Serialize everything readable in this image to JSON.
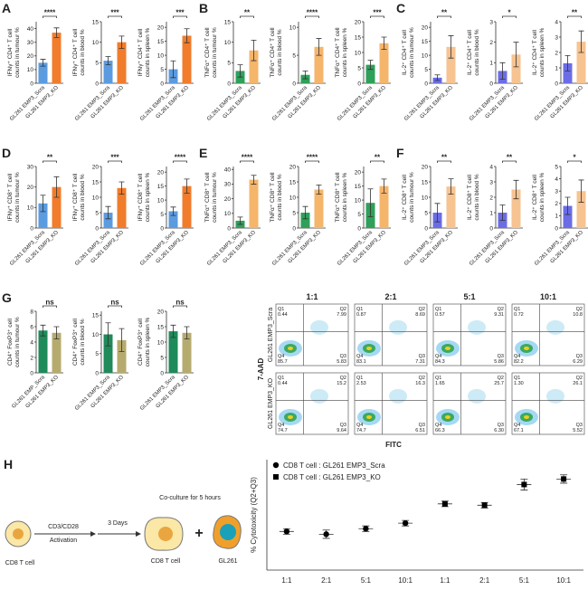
{
  "chart_data": [
    {
      "type": "bar",
      "panel": "A",
      "ylabel": [
        "IFNγ⁺ CD4⁺ T cell",
        "counts in tumour %"
      ],
      "categories": [
        "GL261 EMP3_Scra",
        "GL261 EMP3_KO"
      ],
      "values": [
        15,
        37
      ],
      "errors": [
        2.5,
        3.5
      ],
      "colors": [
        "#5b9be0",
        "#f07c2c"
      ],
      "ylim": [
        0,
        45
      ],
      "yticks": [
        0,
        10,
        20,
        30,
        40
      ],
      "significance": "****"
    },
    {
      "type": "bar",
      "ylabel": [
        "IFNγ⁺ CD4⁺ T cell",
        "counts in blood %"
      ],
      "categories": [
        "GL261 EMP3_Scra",
        "GL261 EMP3_KO"
      ],
      "values": [
        5.5,
        10
      ],
      "errors": [
        1,
        1.5
      ],
      "colors": [
        "#5b9be0",
        "#f07c2c"
      ],
      "ylim": [
        0,
        15
      ],
      "yticks": [
        0,
        5,
        10,
        15
      ],
      "significance": "***"
    },
    {
      "type": "bar",
      "ylabel": [
        "IFNγ⁺ CD4⁺ T cell",
        "counts in spleen %"
      ],
      "categories": [
        "GL261 EMP3_Scra",
        "GL261 EMP3_KO"
      ],
      "values": [
        5,
        17
      ],
      "errors": [
        3,
        2.5
      ],
      "colors": [
        "#5b9be0",
        "#f07c2c"
      ],
      "ylim": [
        0,
        22
      ],
      "yticks": [
        0,
        5,
        10,
        15,
        20
      ],
      "significance": "***"
    },
    {
      "type": "bar",
      "panel": "B",
      "ylabel": [
        "TNFα⁺ CD4⁺ T cell",
        "counts in tumour %"
      ],
      "categories": [
        "GL261 EMP3_Scra",
        "GL261 EMP3_KO"
      ],
      "values": [
        3,
        8
      ],
      "errors": [
        1.5,
        2.5
      ],
      "colors": [
        "#2ea05a",
        "#f5b56b"
      ],
      "ylim": [
        0,
        15
      ],
      "yticks": [
        0,
        5,
        10,
        15
      ],
      "significance": "**"
    },
    {
      "type": "bar",
      "ylabel": [
        "TNFα⁺ CD4⁺ T cell",
        "counts in blood %"
      ],
      "categories": [
        "GL261 EMP3_Scra",
        "GL261 EMP3_KO"
      ],
      "values": [
        1.5,
        6.5
      ],
      "errors": [
        0.7,
        1.5
      ],
      "colors": [
        "#2ea05a",
        "#f5b56b"
      ],
      "ylim": [
        0,
        11
      ],
      "yticks": [
        0,
        5,
        10
      ],
      "significance": "****"
    },
    {
      "type": "bar",
      "ylabel": [
        "TNFα⁺ CD4⁺ T cell",
        "counts in spleen %"
      ],
      "categories": [
        "GL261 EMP3_Scra",
        "GL261 EMP3_KO"
      ],
      "values": [
        6,
        13
      ],
      "errors": [
        1.5,
        2
      ],
      "colors": [
        "#2ea05a",
        "#f5b56b"
      ],
      "ylim": [
        0,
        20
      ],
      "yticks": [
        0,
        5,
        10,
        15,
        20
      ],
      "significance": "***"
    },
    {
      "type": "bar",
      "panel": "C",
      "ylabel": [
        "IL-2⁺ CD4⁺ T cell",
        "counts in tumour %"
      ],
      "categories": [
        "GL261 EMP3_Scra",
        "GL261 EMP3_KO"
      ],
      "values": [
        2,
        13
      ],
      "errors": [
        1,
        4
      ],
      "colors": [
        "#6b6de6",
        "#f6c391"
      ],
      "ylim": [
        0,
        22
      ],
      "yticks": [
        0,
        5,
        10,
        15,
        20
      ],
      "significance": "**"
    },
    {
      "type": "bar",
      "ylabel": [
        "IL-2⁺ CD4⁺ T cell",
        "counts in blood %"
      ],
      "categories": [
        "GL261 EMP3_Scra",
        "GL261 EMP3_KO"
      ],
      "values": [
        0.6,
        1.4
      ],
      "errors": [
        0.4,
        0.6
      ],
      "colors": [
        "#6b6de6",
        "#f6c391"
      ],
      "ylim": [
        0,
        3
      ],
      "yticks": [
        0,
        1,
        2,
        3
      ],
      "significance": "*"
    },
    {
      "type": "bar",
      "ylabel": [
        "IL-2⁺ CD4⁺ T cell",
        "counts in spleen %"
      ],
      "categories": [
        "GL261 EMP3_Scra",
        "GL261 EMP3_KO"
      ],
      "values": [
        1.3,
        2.7
      ],
      "errors": [
        0.5,
        0.7
      ],
      "colors": [
        "#6b6de6",
        "#f6c391"
      ],
      "ylim": [
        0,
        4
      ],
      "yticks": [
        0,
        1,
        2,
        3,
        4
      ],
      "significance": "**"
    },
    {
      "type": "bar",
      "panel": "D",
      "ylabel": [
        "IFNγ⁺ CD8⁺ T cell",
        "counts in tumour %"
      ],
      "categories": [
        "GL261 EMP3_Scra",
        "GL261 EMP3_KO"
      ],
      "values": [
        12,
        20
      ],
      "errors": [
        4,
        5
      ],
      "colors": [
        "#5b9be0",
        "#f07c2c"
      ],
      "ylim": [
        0,
        30
      ],
      "yticks": [
        0,
        10,
        20,
        30
      ],
      "significance": "**"
    },
    {
      "type": "bar",
      "ylabel": [
        "IFNγ⁺ CD8⁺ T cell",
        "counts in blood %"
      ],
      "categories": [
        "GL261 EMP3_Scra",
        "GL261 EMP3_KO"
      ],
      "values": [
        5,
        13
      ],
      "errors": [
        2,
        2
      ],
      "colors": [
        "#5b9be0",
        "#f07c2c"
      ],
      "ylim": [
        0,
        20
      ],
      "yticks": [
        0,
        5,
        10,
        15,
        20
      ],
      "significance": "***"
    },
    {
      "type": "bar",
      "ylabel": [
        "IFNγ⁺ CD8⁺ T cell",
        "counts in spleen %"
      ],
      "categories": [
        "GL261 EMP3_Scra",
        "GL261 EMP3_KO"
      ],
      "values": [
        6,
        15
      ],
      "errors": [
        1.5,
        2.5
      ],
      "colors": [
        "#5b9be0",
        "#f07c2c"
      ],
      "ylim": [
        0,
        22
      ],
      "yticks": [
        0,
        5,
        10,
        15,
        20
      ],
      "significance": "****"
    },
    {
      "type": "bar",
      "panel": "E",
      "ylabel": [
        "TNFα⁺ CD8⁺ T cell",
        "counts in tumour %"
      ],
      "categories": [
        "GL261 EMP3_Scra",
        "GL261 EMP3_KO"
      ],
      "values": [
        5,
        33
      ],
      "errors": [
        2.5,
        3
      ],
      "colors": [
        "#2ea05a",
        "#f5b56b"
      ],
      "ylim": [
        0,
        42
      ],
      "yticks": [
        0,
        10,
        20,
        30,
        40
      ],
      "significance": "****"
    },
    {
      "type": "bar",
      "ylabel": [
        "TNFα⁺ CD8⁺ T cell",
        "counts in blood %"
      ],
      "categories": [
        "GL261 EMP3_Scra",
        "GL261 EMP3_KO"
      ],
      "values": [
        5,
        12.5
      ],
      "errors": [
        2,
        1.5
      ],
      "colors": [
        "#2ea05a",
        "#f5b56b"
      ],
      "ylim": [
        0,
        20
      ],
      "yticks": [
        0,
        5,
        10,
        15,
        20
      ],
      "significance": "****"
    },
    {
      "type": "bar",
      "ylabel": [
        "TNFα⁺ CD8⁺ T cell",
        "counts in spleen %"
      ],
      "categories": [
        "GL261 EMP3_Scra",
        "GL261 EMP3_KO"
      ],
      "values": [
        9,
        15
      ],
      "errors": [
        5,
        2.5
      ],
      "colors": [
        "#2ea05a",
        "#f5b56b"
      ],
      "ylim": [
        0,
        22
      ],
      "yticks": [
        0,
        5,
        10,
        15,
        20
      ],
      "significance": "**"
    },
    {
      "type": "bar",
      "panel": "F",
      "ylabel": [
        "IL-2⁺ CD8⁺ T cell",
        "counts in tumour %"
      ],
      "categories": [
        "GL261 EMP3_Scra",
        "GL261 EMP3_KO"
      ],
      "values": [
        5,
        13.5
      ],
      "errors": [
        3,
        2.5
      ],
      "colors": [
        "#6b6de6",
        "#f6c391"
      ],
      "ylim": [
        0,
        20
      ],
      "yticks": [
        0,
        5,
        10,
        15,
        20
      ],
      "significance": "**"
    },
    {
      "type": "bar",
      "ylabel": [
        "IL-2⁺ CD8⁺ T cell",
        "counts in blood %"
      ],
      "categories": [
        "GL261 EMP3_Scra",
        "GL261 EMP3_KO"
      ],
      "values": [
        1,
        2.5
      ],
      "errors": [
        0.5,
        0.6
      ],
      "colors": [
        "#6b6de6",
        "#f6c391"
      ],
      "ylim": [
        0,
        4
      ],
      "yticks": [
        0,
        1,
        2,
        3,
        4
      ],
      "significance": "**"
    },
    {
      "type": "bar",
      "ylabel": [
        "IL-2⁺ CD8⁺ T cell",
        "counts in spleen %"
      ],
      "categories": [
        "GL261 EMP3_Scra",
        "GL261 EMP3_KO"
      ],
      "values": [
        1.8,
        3
      ],
      "errors": [
        0.7,
        0.9
      ],
      "colors": [
        "#6b6de6",
        "#f6c391"
      ],
      "ylim": [
        0,
        5
      ],
      "yticks": [
        0,
        1,
        2,
        3,
        4,
        5
      ],
      "significance": "*"
    },
    {
      "type": "bar",
      "panel": "G",
      "ylabel": [
        "CD4⁺ FoxP3⁺ cell",
        "counts in tumour %"
      ],
      "categories": [
        "GL261 EMP_Scra",
        "GL261 EMP3_KO"
      ],
      "values": [
        5.5,
        5.2
      ],
      "errors": [
        0.7,
        0.8
      ],
      "colors": [
        "#1f8a5a",
        "#b6ab6e"
      ],
      "ylim": [
        0,
        8
      ],
      "yticks": [
        0,
        2,
        4,
        6,
        8
      ],
      "significance": "ns"
    },
    {
      "type": "bar",
      "ylabel": [
        "CD4⁺ FoxP3⁺ cell",
        "counts in blood %"
      ],
      "categories": [
        "GL261 EMP3_Scra",
        "GL261 EMP3_KO"
      ],
      "values": [
        10,
        8.5
      ],
      "errors": [
        3,
        3
      ],
      "colors": [
        "#1f8a5a",
        "#b6ab6e"
      ],
      "ylim": [
        0,
        16
      ],
      "yticks": [
        0,
        5,
        10,
        15
      ],
      "significance": "ns"
    },
    {
      "type": "bar",
      "ylabel": [
        "CD4⁺ FoxP3⁺ cell",
        "counts in spleen %"
      ],
      "categories": [
        "GL261 EMP3_Scra",
        "GL261 EMP3_KO"
      ],
      "values": [
        13.5,
        13
      ],
      "errors": [
        2,
        2
      ],
      "colors": [
        "#1f8a5a",
        "#b6ab6e"
      ],
      "ylim": [
        0,
        20
      ],
      "yticks": [
        0,
        5,
        10,
        15,
        20
      ],
      "significance": "ns"
    },
    {
      "type": "scatter",
      "panel": "H",
      "ylabel": "% Cytotoxicity (Q2+Q3)",
      "categories": [
        "1:1",
        "2:1",
        "5:1",
        "10:1",
        "1:1",
        "2:1",
        "5:1",
        "10:1"
      ],
      "ylim": [
        0,
        40
      ],
      "series": [
        {
          "name": "CD8 T cell : GL261 EMP3_Scra",
          "marker": "circle",
          "color": "#000000",
          "values": [
            14,
            13,
            15,
            17,
            null,
            null,
            null,
            null
          ],
          "errors": [
            1,
            1.5,
            1,
            1,
            null,
            null,
            null,
            null
          ]
        },
        {
          "name": "CD8 T cell : GL261 EMP3_KO",
          "marker": "square",
          "color": "#000000",
          "values": [
            null,
            null,
            null,
            null,
            24,
            23.5,
            31,
            33
          ],
          "errors": [
            null,
            null,
            null,
            null,
            1,
            1,
            2,
            1.5
          ]
        }
      ]
    }
  ],
  "flow": {
    "columns": [
      "1:1",
      "2:1",
      "5:1",
      "10:1"
    ],
    "rows": [
      "GL261 EMP3_Scra",
      "GL261 EMP3_KO"
    ],
    "y_axis": "7-AAD",
    "x_axis": "FITC",
    "quadrant_names": [
      "Q1",
      "Q2",
      "Q3",
      "Q4"
    ],
    "quadrants": [
      [
        [
          "0.44",
          "7.99",
          "5.83",
          "85.7"
        ],
        [
          "0.87",
          "8.69",
          "7.31",
          "83.1"
        ],
        [
          "0.57",
          "9.31",
          "5.86",
          "84.3"
        ],
        [
          "0.72",
          "10.8",
          "6.29",
          "82.2"
        ]
      ],
      [
        [
          "0.44",
          "15.2",
          "9.64",
          "74.7"
        ],
        [
          "2.53",
          "16.3",
          "6.51",
          "74.7"
        ],
        [
          "1.65",
          "25.7",
          "6.30",
          "66.3"
        ],
        [
          "1.30",
          "26.1",
          "5.52",
          "67.1"
        ]
      ]
    ]
  },
  "schematic": {
    "start_cell": "CD8 T cell",
    "step1_top": "CD3/CD28",
    "step1_bottom": "Activation",
    "step2": "3 Days",
    "coculture": "Co-culture for 5 hours",
    "activated_cell": "CD8 T cell",
    "plus": "+",
    "tumour_cell": "GL261"
  }
}
